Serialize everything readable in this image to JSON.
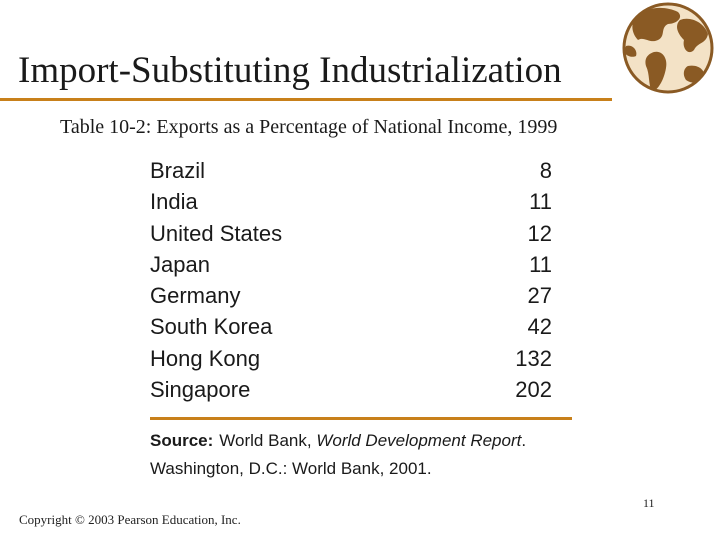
{
  "slide": {
    "title": "Import-Substituting Industrialization",
    "table_caption": "Table 10-2: Exports as a Percentage of National Income, 1999",
    "page_number": "11",
    "copyright": "Copyright © 2003 Pearson Education, Inc."
  },
  "table": {
    "rows": [
      {
        "country": "Brazil",
        "value": "8"
      },
      {
        "country": "India",
        "value": "11"
      },
      {
        "country": "United States",
        "value": "12"
      },
      {
        "country": "Japan",
        "value": "11"
      },
      {
        "country": "Germany",
        "value": "27"
      },
      {
        "country": "South Korea",
        "value": "42"
      },
      {
        "country": "Hong Kong",
        "value": "132"
      },
      {
        "country": "Singapore",
        "value": "202"
      }
    ]
  },
  "source": {
    "label": "Source:",
    "publisher": "World Bank,",
    "report": "World Development Report",
    "rest": ". Washington, D.C.: World Bank, 2001."
  },
  "colors": {
    "accent": "#c8801a",
    "globe": "#8a5a24"
  },
  "icons": {
    "globe": "globe-icon"
  }
}
